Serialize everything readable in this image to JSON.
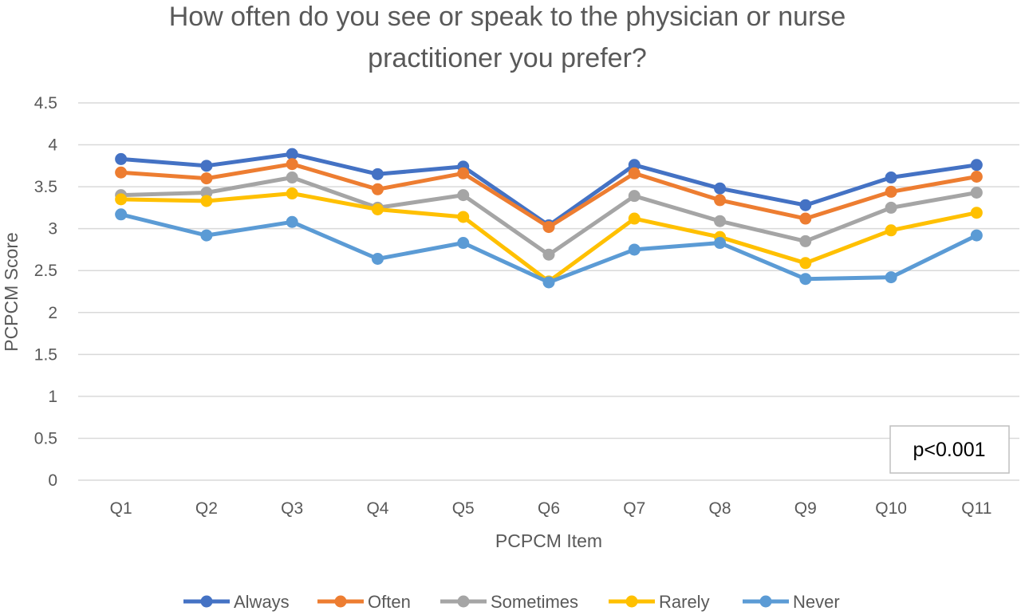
{
  "chart_data": {
    "type": "line",
    "title_line1": "How often do you see or speak to the physician or nurse",
    "title_line2": "practitioner you prefer?",
    "xlabel": "PCPCM Item",
    "ylabel": "PCPCM Score",
    "ylim": [
      0,
      4.5
    ],
    "ytick_step": 0.5,
    "y_ticks": [
      "0",
      "0.5",
      "1",
      "1.5",
      "2",
      "2.5",
      "3",
      "3.5",
      "4",
      "4.5"
    ],
    "grid": true,
    "legend_position": "bottom",
    "categories": [
      "Q1",
      "Q2",
      "Q3",
      "Q4",
      "Q5",
      "Q6",
      "Q7",
      "Q8",
      "Q9",
      "Q10",
      "Q11"
    ],
    "series": [
      {
        "name": "Always",
        "color": "#4472C4",
        "values": [
          3.83,
          3.75,
          3.89,
          3.65,
          3.74,
          3.04,
          3.76,
          3.48,
          3.28,
          3.61,
          3.76
        ]
      },
      {
        "name": "Often",
        "color": "#ED7D31",
        "values": [
          3.67,
          3.6,
          3.77,
          3.47,
          3.66,
          3.02,
          3.66,
          3.34,
          3.12,
          3.44,
          3.62
        ]
      },
      {
        "name": "Sometimes",
        "color": "#A5A5A5",
        "values": [
          3.4,
          3.43,
          3.61,
          3.25,
          3.4,
          2.69,
          3.39,
          3.09,
          2.85,
          3.25,
          3.43
        ]
      },
      {
        "name": "Rarely",
        "color": "#FFC000",
        "values": [
          3.35,
          3.33,
          3.42,
          3.23,
          3.14,
          2.37,
          3.12,
          2.9,
          2.59,
          2.98,
          3.19
        ]
      },
      {
        "name": "Never",
        "color": "#5B9BD5",
        "values": [
          3.17,
          2.92,
          3.08,
          2.64,
          2.83,
          2.36,
          2.75,
          2.83,
          2.4,
          2.42,
          2.92
        ]
      }
    ],
    "annotation": "p<0.001"
  }
}
